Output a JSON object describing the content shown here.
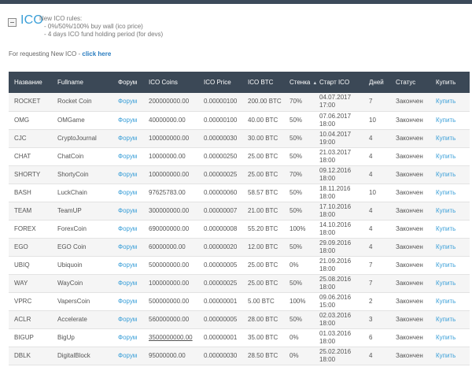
{
  "ico": {
    "title": "ICO",
    "rules_heading": "New ICO rules:",
    "rules": [
      "- 0%/50%/100% buy wall (ico price)",
      "- 4 days ICO fund holding period (for devs)"
    ],
    "request_text": "For requesting New ICO - ",
    "request_link": "click here"
  },
  "table": {
    "headers": {
      "name": "Название",
      "fullname": "Fullname",
      "forum": "Форум",
      "coins": "ICO Coins",
      "price": "ICO Price",
      "btc": "ICO BTC",
      "wall": "Стенка",
      "start": "Старт ICO",
      "days": "Дней",
      "status": "Статус",
      "buy": "Купить"
    },
    "rows": [
      {
        "name": "ROCKET",
        "fullname": "Rocket Coin",
        "forum": "Форум",
        "coins": "200000000.00",
        "price": "0.00000100",
        "btc": "200.00 BTC",
        "wall": "70%",
        "start": "04.07.2017 17:00",
        "days": "7",
        "status": "Закончен",
        "buy": "Купить"
      },
      {
        "name": "OMG",
        "fullname": "OMGame",
        "forum": "Форум",
        "coins": "40000000.00",
        "price": "0.00000100",
        "btc": "40.00 BTC",
        "wall": "50%",
        "start": "07.06.2017 18:00",
        "days": "10",
        "status": "Закончен",
        "buy": "Купить"
      },
      {
        "name": "CJC",
        "fullname": "CryptoJournal",
        "forum": "Форум",
        "coins": "100000000.00",
        "price": "0.00000030",
        "btc": "30.00 BTC",
        "wall": "50%",
        "start": "10.04.2017 19:00",
        "days": "4",
        "status": "Закончен",
        "buy": "Купить"
      },
      {
        "name": "CHAT",
        "fullname": "ChatCoin",
        "forum": "Форум",
        "coins": "10000000.00",
        "price": "0.00000250",
        "btc": "25.00 BTC",
        "wall": "50%",
        "start": "21.03.2017 18:00",
        "days": "4",
        "status": "Закончен",
        "buy": "Купить"
      },
      {
        "name": "SHORTY",
        "fullname": "ShortyCoin",
        "forum": "Форум",
        "coins": "100000000.00",
        "price": "0.00000025",
        "btc": "25.00 BTC",
        "wall": "70%",
        "start": "09.12.2016 18:00",
        "days": "4",
        "status": "Закончен",
        "buy": "Купить"
      },
      {
        "name": "BASH",
        "fullname": "LuckChain",
        "forum": "Форум",
        "coins": "97625783.00",
        "price": "0.00000060",
        "btc": "58.57 BTC",
        "wall": "50%",
        "start": "18.11.2016 18:00",
        "days": "10",
        "status": "Закончен",
        "buy": "Купить"
      },
      {
        "name": "TEAM",
        "fullname": "TeamUP",
        "forum": "Форум",
        "coins": "300000000.00",
        "price": "0.00000007",
        "btc": "21.00 BTC",
        "wall": "50%",
        "start": "17.10.2016 18:00",
        "days": "4",
        "status": "Закончен",
        "buy": "Купить"
      },
      {
        "name": "FOREX",
        "fullname": "ForexCoin",
        "forum": "Форум",
        "coins": "690000000.00",
        "price": "0.00000008",
        "btc": "55.20 BTC",
        "wall": "100%",
        "start": "14.10.2016 18:00",
        "days": "4",
        "status": "Закончен",
        "buy": "Купить"
      },
      {
        "name": "EGO",
        "fullname": "EGO Coin",
        "forum": "Форум",
        "coins": "60000000.00",
        "price": "0.00000020",
        "btc": "12.00 BTC",
        "wall": "50%",
        "start": "29.09.2016 18:00",
        "days": "4",
        "status": "Закончен",
        "buy": "Купить"
      },
      {
        "name": "UBIQ",
        "fullname": "Ubiquoin",
        "forum": "Форум",
        "coins": "500000000.00",
        "price": "0.00000005",
        "btc": "25.00 BTC",
        "wall": "0%",
        "start": "21.09.2016 18:00",
        "days": "7",
        "status": "Закончен",
        "buy": "Купить"
      },
      {
        "name": "WAY",
        "fullname": "WayCoin",
        "forum": "Форум",
        "coins": "100000000.00",
        "price": "0.00000025",
        "btc": "25.00 BTC",
        "wall": "50%",
        "start": "25.08.2016 18:00",
        "days": "7",
        "status": "Закончен",
        "buy": "Купить"
      },
      {
        "name": "VPRC",
        "fullname": "VapersCoin",
        "forum": "Форум",
        "coins": "500000000.00",
        "price": "0.00000001",
        "btc": "5.00 BTC",
        "wall": "100%",
        "start": "09.06.2016 15:00",
        "days": "2",
        "status": "Закончен",
        "buy": "Купить"
      },
      {
        "name": "ACLR",
        "fullname": "Accelerate",
        "forum": "Форум",
        "coins": "560000000.00",
        "price": "0.00000005",
        "btc": "28.00 BTC",
        "wall": "50%",
        "start": "02.03.2016 18:00",
        "days": "3",
        "status": "Закончен",
        "buy": "Купить"
      },
      {
        "name": "BIGUP",
        "fullname": "BigUp",
        "forum": "Форум",
        "coins": "3500000000.00",
        "price": "0.00000001",
        "btc": "35.00 BTC",
        "wall": "0%",
        "start": "01.03.2016 18:00",
        "days": "6",
        "status": "Закончен",
        "buy": "Купить"
      },
      {
        "name": "DBLK",
        "fullname": "DigitalBlock",
        "forum": "Форум",
        "coins": "95000000.00",
        "price": "0.00000030",
        "btc": "28.50 BTC",
        "wall": "0%",
        "start": "25.02.2016 18:00",
        "days": "4",
        "status": "Закончен",
        "buy": "Купить"
      }
    ]
  },
  "colors": {
    "header_bg": "#3b4856",
    "link": "#3a9fd8",
    "title": "#3a9fd8"
  }
}
